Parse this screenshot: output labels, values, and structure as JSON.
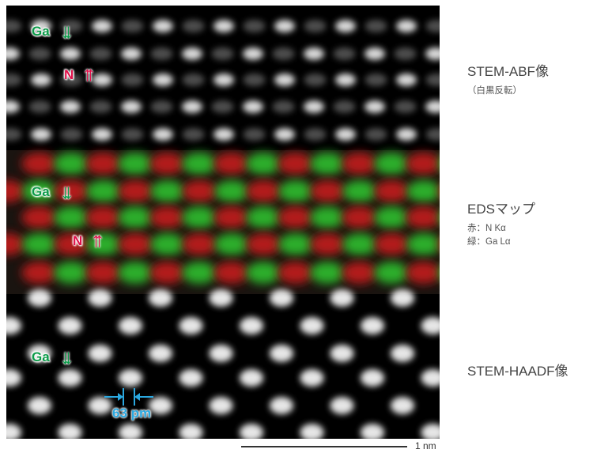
{
  "panels": {
    "abf": {
      "title": "STEM-ABF像",
      "note": "（白黒反転）"
    },
    "eds": {
      "title": "EDSマップ",
      "legend": [
        "赤：N Kα",
        "緑：Ga Lα"
      ]
    },
    "haadf": {
      "title": "STEM-HAADF像"
    }
  },
  "labels": {
    "ga": "Ga",
    "n": "N",
    "ga_arrows": "↓↓",
    "n_arrows": "↑↑"
  },
  "measurement": {
    "distance": "63 pm"
  },
  "scale_bar": {
    "label": "1 nm"
  },
  "colors": {
    "ga": "#0a9b48",
    "n": "#e0104a",
    "measure": "#2aa8e0",
    "eds_red": "#c41a1a",
    "eds_green": "#2fc02f"
  }
}
